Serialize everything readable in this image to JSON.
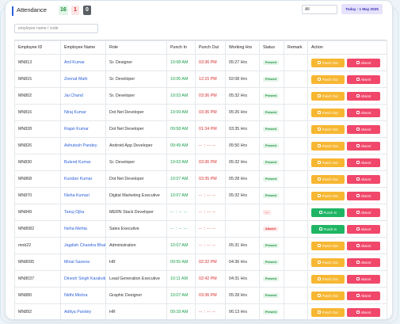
{
  "header": {
    "title": "Attendance",
    "counts": {
      "green": "16",
      "red": "1",
      "dark": "0"
    },
    "filter_value": "All",
    "today": "Today : 1 May 2025"
  },
  "search": {
    "placeholder": "employee name / code"
  },
  "columns": [
    "Employee ID",
    "Employee Name",
    "Role",
    "Punch In",
    "Punch Out",
    "Working Hrs",
    "Status",
    "Remark",
    "Action"
  ],
  "actions": {
    "punch_out": "Punch Out",
    "punch_in": "Punch In",
    "absent": "Absent"
  },
  "colors": {
    "accent": "#2b5fd9",
    "punch_in_time": "#1a9e4b",
    "punch_out_time": "#d92b2b",
    "btn_punch_out": "#f7b733",
    "btn_punch_in": "#1fb564",
    "btn_absent": "#f0476a"
  },
  "rows": [
    {
      "id": "MN813",
      "name": "Anil Kumar",
      "role": "Sr. Designer",
      "in": "10:08 AM",
      "out": "03:36 PM",
      "hrs": "05:27 Hrs",
      "status": "Present",
      "status_kind": "present",
      "action": "punch_out"
    },
    {
      "id": "MN815",
      "name": "Zeenat Mahi",
      "role": "Sr. Developer",
      "in": "10:06 AM",
      "out": "12:15 PM",
      "hrs": "02:08 Hrs",
      "status": "Present",
      "status_kind": "present",
      "action": "punch_out"
    },
    {
      "id": "MN802",
      "name": "Jai Chand",
      "role": "Sr. Developer",
      "in": "10:03 AM",
      "out": "03:36 PM",
      "hrs": "05:32 Hrs",
      "status": "Present",
      "status_kind": "present",
      "action": "punch_out"
    },
    {
      "id": "MN816",
      "name": "Niraj Kumar",
      "role": "Dot Net Developer",
      "in": "10:09 AM",
      "out": "03:36 PM",
      "hrs": "05:26 Hrs",
      "status": "Present",
      "status_kind": "present",
      "action": "punch_out"
    },
    {
      "id": "MN828",
      "name": "Rajan Kumar",
      "role": "Dot Net Developer",
      "in": "09:58 AM",
      "out": "01:34 PM",
      "hrs": "03:35 Hrs",
      "status": "Present",
      "status_kind": "present",
      "action": "punch_out"
    },
    {
      "id": "MN826",
      "name": "Ashutosh Pandey",
      "role": "Android App Developer",
      "in": "09:49 AM",
      "out": "-- : -- --",
      "hrs": "05:50 Hrs",
      "status": "Present",
      "status_kind": "present",
      "action": "punch_out"
    },
    {
      "id": "MN830",
      "name": "Bulend Kumar",
      "role": "Sr. Developer",
      "in": "10:03 AM",
      "out": "03:36 PM",
      "hrs": "05:32 Hrs",
      "status": "Present",
      "status_kind": "present",
      "action": "punch_out"
    },
    {
      "id": "MN868",
      "name": "Kundan Kumar",
      "role": "Dot Net Developer",
      "in": "10:07 AM",
      "out": "03:35 PM",
      "hrs": "05:28 Hrs",
      "status": "Present",
      "status_kind": "present",
      "action": "punch_out"
    },
    {
      "id": "MN870",
      "name": "Nisha Kumari",
      "role": "Digital Marketing Executive",
      "in": "10:07 AM",
      "out": "-- : -- --",
      "hrs": "05:32 Hrs",
      "status": "Present",
      "status_kind": "present",
      "action": "punch_out"
    },
    {
      "id": "MN849",
      "name": "Tanuj Ojha",
      "role": "MERN Stack Developer",
      "in": "-- : -- --",
      "out": "-- : -- --",
      "hrs": "",
      "status": "---",
      "status_kind": "blank",
      "action": "punch_in"
    },
    {
      "id": "MN8082",
      "name": "Neha Mehta",
      "role": "Sales Executive",
      "in": "-- : -- --",
      "out": "-- : -- --",
      "hrs": "",
      "status": "Absent",
      "status_kind": "absent",
      "action": "punch_in"
    },
    {
      "id": "mnb22",
      "name": "Jagdish Chandra Bhatt",
      "role": "Administration",
      "in": "10:07 AM",
      "out": "-- : -- --",
      "hrs": "05:31 Hrs",
      "status": "Present",
      "status_kind": "present",
      "action": "punch_out"
    },
    {
      "id": "MN8095",
      "name": "Minal Saxena",
      "role": "HR",
      "in": "09:55 AM",
      "out": "02:32 PM",
      "hrs": "04:36 Hrs",
      "status": "Present",
      "status_kind": "present",
      "action": "punch_out"
    },
    {
      "id": "MN8037",
      "name": "Dinesh Singh Karakoti",
      "role": "Lead Generation Executive",
      "in": "10:11 AM",
      "out": "02:42 PM",
      "hrs": "04:31 Hrs",
      "status": "Present",
      "status_kind": "present",
      "action": "punch_out"
    },
    {
      "id": "MN880",
      "name": "Nidhi Mishra",
      "role": "Graphic Designer",
      "in": "10:07 AM",
      "out": "03:36 PM",
      "hrs": "05:28 Hrs",
      "status": "Present",
      "status_kind": "present",
      "action": "punch_out"
    },
    {
      "id": "MN892",
      "name": "Aditya Pandey",
      "role": "HR",
      "in": "09:18 AM",
      "out": "-- : -- --",
      "hrs": "06:13 Hrs",
      "status": "Present",
      "status_kind": "present",
      "action": "punch_out"
    }
  ]
}
